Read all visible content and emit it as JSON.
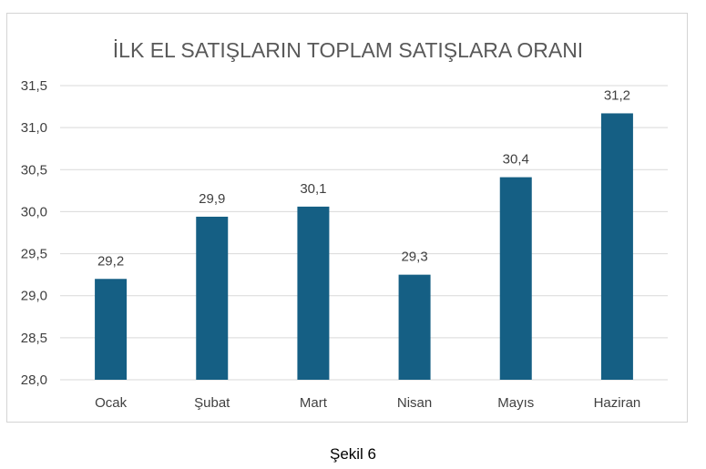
{
  "figure": {
    "caption": "Şekil 6"
  },
  "chart_data": {
    "type": "bar",
    "title": "İLK EL SATIŞLARIN TOPLAM SATIŞLARA ORANI",
    "xlabel": "",
    "ylabel": "",
    "categories": [
      "Ocak",
      "Şubat",
      "Mart",
      "Nisan",
      "Mayıs",
      "Haziran"
    ],
    "values": [
      29.2,
      29.94,
      30.06,
      29.25,
      30.41,
      31.17
    ],
    "data_labels": [
      "29,2",
      "29,9",
      "30,1",
      "29,3",
      "30,4",
      "31,2"
    ],
    "ylim": [
      28.0,
      31.5
    ],
    "yticks": [
      28.0,
      28.5,
      29.0,
      29.5,
      30.0,
      30.5,
      31.0,
      31.5
    ],
    "ytick_labels": [
      "28,0",
      "28,5",
      "29,0",
      "29,5",
      "30,0",
      "30,5",
      "31,0",
      "31,5"
    ],
    "grid": true,
    "legend": "none",
    "bar_color": "#155f84",
    "grid_color": "#d9d9d9",
    "title_color": "#595959",
    "label_color": "#404040"
  }
}
